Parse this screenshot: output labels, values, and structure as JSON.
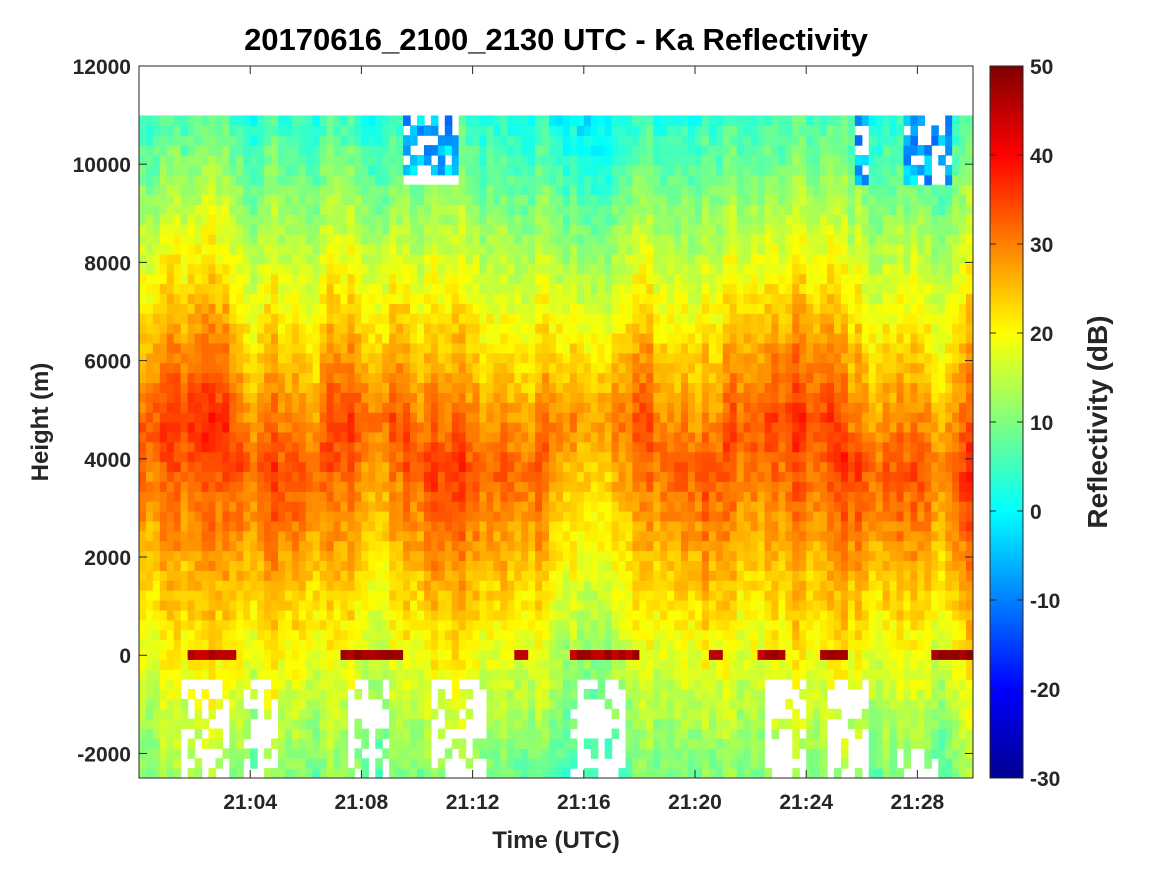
{
  "chart_data": {
    "type": "heatmap",
    "title": "20170616_2100_2130 UTC - Ka Reflectivity",
    "xlabel": "Time (UTC)",
    "ylabel": "Height (m)",
    "xlim_minutes_after_2100": [
      0,
      30
    ],
    "ylim": [
      -2500,
      12000
    ],
    "x_tick_labels": [
      "21:04",
      "21:08",
      "21:12",
      "21:16",
      "21:20",
      "21:24",
      "21:28"
    ],
    "x_tick_minutes": [
      4,
      8,
      12,
      16,
      20,
      24,
      28
    ],
    "y_ticks": [
      -2000,
      0,
      2000,
      4000,
      6000,
      8000,
      10000,
      12000
    ],
    "colorbar": {
      "label": "Reflectivity (dB)",
      "range": [
        -30,
        50
      ],
      "ticks": [
        -30,
        -20,
        -10,
        0,
        10,
        20,
        30,
        40,
        50
      ],
      "colormap": "jet"
    },
    "data_top_height_m": 11000,
    "melting_layer_height_m": 0,
    "max_reflectivity_band_m": [
      3000,
      4800
    ],
    "grid": false
  }
}
